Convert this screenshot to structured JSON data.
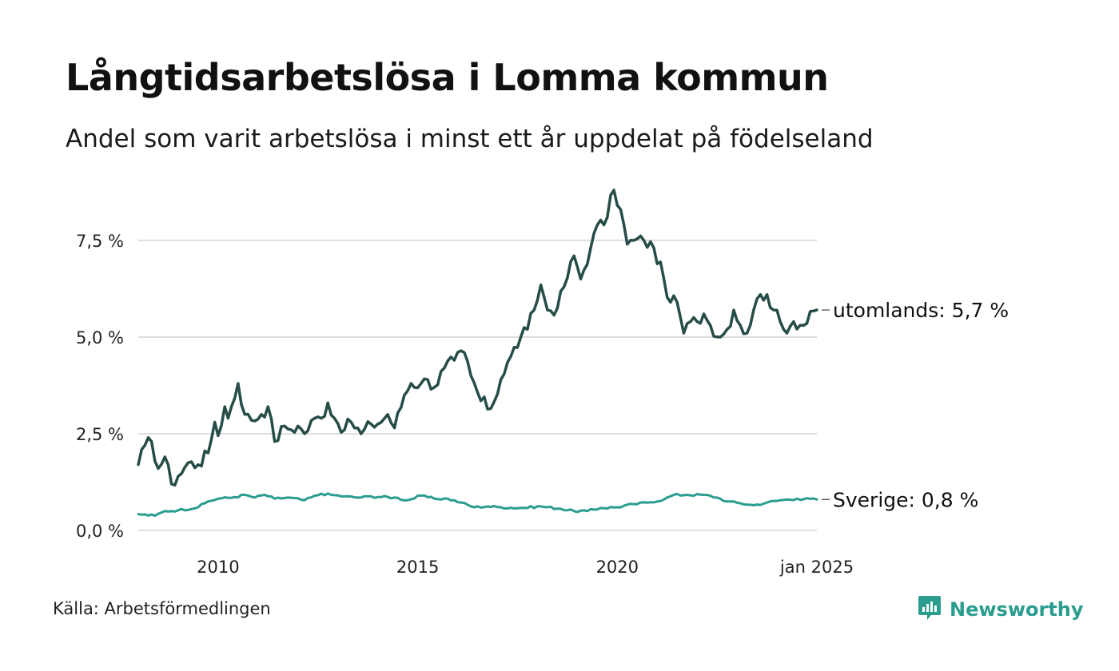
{
  "title": "Långtidsarbetslösa i Lomma kommun",
  "subtitle": "Andel som varit arbetslösa i minst ett år uppdelat på födelseland",
  "source": "Källa: Arbetsförmedlingen",
  "brand": {
    "name": "Newsworthy",
    "icon": "newsworthy-logo-icon",
    "color": "#2a9d8f"
  },
  "chart_data": {
    "type": "line",
    "x_start": "2008-01",
    "x_end": "2025-01",
    "frequency": "monthly",
    "ylim": [
      0,
      8.8
    ],
    "y_ticks": [
      {
        "value": 0,
        "label": "0,0 %"
      },
      {
        "value": 2.5,
        "label": "2,5 %"
      },
      {
        "value": 5,
        "label": "5,0 %"
      },
      {
        "value": 7.5,
        "label": "7,5 %"
      }
    ],
    "x_ticks": [
      {
        "date": "2010-01",
        "label": "2010"
      },
      {
        "date": "2015-01",
        "label": "2015"
      },
      {
        "date": "2020-01",
        "label": "2020"
      },
      {
        "date": "2025-01",
        "label": "jan 2025"
      }
    ],
    "grid": "horizontal",
    "legend": "direct labels at line ends",
    "series": [
      {
        "name": "utomlands",
        "end_label": "utomlands: 5,7 %",
        "color": "#264d48",
        "keypoints": [
          [
            "2008-01",
            1.7
          ],
          [
            "2008-03",
            2.2
          ],
          [
            "2008-05",
            2.3
          ],
          [
            "2008-07",
            1.6
          ],
          [
            "2008-09",
            1.9
          ],
          [
            "2008-11",
            1.2
          ],
          [
            "2009-01",
            1.4
          ],
          [
            "2009-04",
            1.75
          ],
          [
            "2009-07",
            1.7
          ],
          [
            "2009-10",
            2.0
          ],
          [
            "2009-12",
            2.8
          ],
          [
            "2010-01",
            2.45
          ],
          [
            "2010-03",
            3.2
          ],
          [
            "2010-04",
            2.9
          ],
          [
            "2010-07",
            3.8
          ],
          [
            "2010-09",
            3.0
          ],
          [
            "2010-11",
            2.85
          ],
          [
            "2011-02",
            3.0
          ],
          [
            "2011-04",
            3.2
          ],
          [
            "2011-06",
            2.3
          ],
          [
            "2011-09",
            2.7
          ],
          [
            "2011-11",
            2.6
          ],
          [
            "2012-01",
            2.7
          ],
          [
            "2012-03",
            2.5
          ],
          [
            "2012-06",
            2.9
          ],
          [
            "2012-08",
            2.9
          ],
          [
            "2012-10",
            3.3
          ],
          [
            "2012-12",
            2.9
          ],
          [
            "2013-03",
            2.6
          ],
          [
            "2013-05",
            2.8
          ],
          [
            "2013-08",
            2.5
          ],
          [
            "2013-11",
            2.75
          ],
          [
            "2014-01",
            2.75
          ],
          [
            "2014-04",
            3.0
          ],
          [
            "2014-06",
            2.65
          ],
          [
            "2014-09",
            3.5
          ],
          [
            "2014-11",
            3.8
          ],
          [
            "2015-02",
            3.8
          ],
          [
            "2015-04",
            3.9
          ],
          [
            "2015-06",
            3.7
          ],
          [
            "2015-09",
            4.2
          ],
          [
            "2015-12",
            4.4
          ],
          [
            "2016-03",
            4.6
          ],
          [
            "2016-05",
            4.0
          ],
          [
            "2016-08",
            3.35
          ],
          [
            "2016-11",
            3.15
          ],
          [
            "2017-02",
            3.9
          ],
          [
            "2017-05",
            4.5
          ],
          [
            "2017-08",
            5.0
          ],
          [
            "2017-10",
            5.2
          ],
          [
            "2017-12",
            5.7
          ],
          [
            "2018-02",
            6.35
          ],
          [
            "2018-04",
            5.7
          ],
          [
            "2018-07",
            5.75
          ],
          [
            "2018-09",
            6.3
          ],
          [
            "2018-12",
            7.1
          ],
          [
            "2019-02",
            6.5
          ],
          [
            "2019-05",
            7.3
          ],
          [
            "2019-07",
            7.9
          ],
          [
            "2019-09",
            7.9
          ],
          [
            "2019-12",
            8.8
          ],
          [
            "2020-02",
            8.3
          ],
          [
            "2020-04",
            7.4
          ],
          [
            "2020-06",
            7.5
          ],
          [
            "2020-09",
            7.5
          ],
          [
            "2020-12",
            7.3
          ],
          [
            "2021-03",
            6.5
          ],
          [
            "2021-05",
            5.9
          ],
          [
            "2021-07",
            5.9
          ],
          [
            "2021-09",
            5.1
          ],
          [
            "2021-11",
            5.4
          ],
          [
            "2022-01",
            5.4
          ],
          [
            "2022-03",
            5.6
          ],
          [
            "2022-05",
            5.3
          ],
          [
            "2022-08",
            5.0
          ],
          [
            "2022-10",
            5.2
          ],
          [
            "2022-12",
            5.7
          ],
          [
            "2023-02",
            5.3
          ],
          [
            "2023-04",
            5.1
          ],
          [
            "2023-06",
            5.7
          ],
          [
            "2023-08",
            6.1
          ],
          [
            "2023-10",
            6.1
          ],
          [
            "2023-12",
            5.7
          ],
          [
            "2024-03",
            5.2
          ],
          [
            "2024-06",
            5.4
          ],
          [
            "2024-09",
            5.3
          ],
          [
            "2025-01",
            5.7
          ]
        ]
      },
      {
        "name": "Sverige",
        "end_label": "Sverige: 0,8 %",
        "color": "#2a9d8f",
        "keypoints": [
          [
            "2008-01",
            0.42
          ],
          [
            "2008-06",
            0.38
          ],
          [
            "2008-09",
            0.5
          ],
          [
            "2009-01",
            0.52
          ],
          [
            "2009-07",
            0.6
          ],
          [
            "2009-10",
            0.75
          ],
          [
            "2010-01",
            0.82
          ],
          [
            "2010-06",
            0.86
          ],
          [
            "2010-09",
            0.92
          ],
          [
            "2010-12",
            0.85
          ],
          [
            "2011-03",
            0.92
          ],
          [
            "2011-06",
            0.82
          ],
          [
            "2011-10",
            0.85
          ],
          [
            "2012-03",
            0.78
          ],
          [
            "2012-08",
            0.95
          ],
          [
            "2012-11",
            0.92
          ],
          [
            "2013-03",
            0.88
          ],
          [
            "2013-07",
            0.85
          ],
          [
            "2013-11",
            0.88
          ],
          [
            "2014-06",
            0.85
          ],
          [
            "2014-10",
            0.78
          ],
          [
            "2015-02",
            0.9
          ],
          [
            "2015-06",
            0.82
          ],
          [
            "2015-10",
            0.82
          ],
          [
            "2016-02",
            0.72
          ],
          [
            "2016-06",
            0.6
          ],
          [
            "2016-10",
            0.62
          ],
          [
            "2017-02",
            0.6
          ],
          [
            "2017-08",
            0.58
          ],
          [
            "2018-02",
            0.62
          ],
          [
            "2018-08",
            0.56
          ],
          [
            "2018-12",
            0.5
          ],
          [
            "2019-04",
            0.5
          ],
          [
            "2019-08",
            0.58
          ],
          [
            "2020-01",
            0.6
          ],
          [
            "2020-06",
            0.68
          ],
          [
            "2020-10",
            0.72
          ],
          [
            "2021-03",
            0.8
          ],
          [
            "2021-06",
            0.92
          ],
          [
            "2021-10",
            0.92
          ],
          [
            "2022-03",
            0.92
          ],
          [
            "2022-07",
            0.85
          ],
          [
            "2022-10",
            0.75
          ],
          [
            "2023-02",
            0.7
          ],
          [
            "2023-06",
            0.65
          ],
          [
            "2023-10",
            0.72
          ],
          [
            "2024-02",
            0.78
          ],
          [
            "2024-07",
            0.82
          ],
          [
            "2025-01",
            0.8
          ]
        ]
      }
    ]
  }
}
